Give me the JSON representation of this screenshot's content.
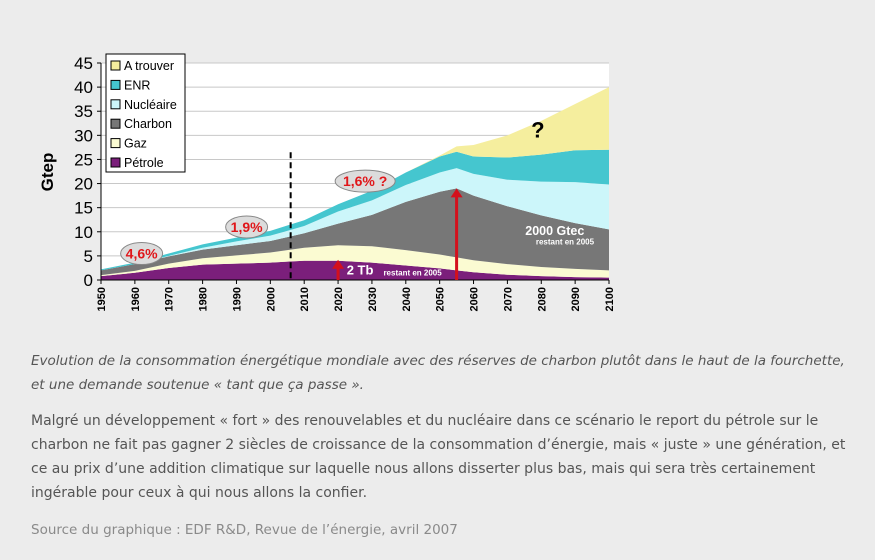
{
  "chart_data": {
    "type": "area",
    "stacked": true,
    "ylabel": "Gtep",
    "ylim": [
      0,
      45
    ],
    "yticks": [
      0,
      5,
      10,
      15,
      20,
      25,
      30,
      35,
      40,
      45
    ],
    "xlim": [
      1950,
      2100
    ],
    "xticks": [
      1950,
      1960,
      1970,
      1980,
      1990,
      2000,
      2010,
      2020,
      2030,
      2040,
      2050,
      2060,
      2070,
      2080,
      2090,
      2100
    ],
    "grid": true,
    "legend_position": "top-left",
    "x": [
      1950,
      1960,
      1970,
      1980,
      1990,
      2000,
      2005,
      2010,
      2020,
      2030,
      2040,
      2050,
      2055,
      2060,
      2070,
      2080,
      2090,
      2100
    ],
    "series": [
      {
        "name": "Pétrole",
        "color": "#7b1f7b",
        "values": [
          0.8,
          1.5,
          2.5,
          3.2,
          3.4,
          3.6,
          3.8,
          4.0,
          4.0,
          3.6,
          3.0,
          2.4,
          2.0,
          1.6,
          1.1,
          0.8,
          0.6,
          0.5
        ]
      },
      {
        "name": "Gaz",
        "color": "#fbfbd2",
        "values": [
          0.2,
          0.4,
          0.9,
          1.3,
          1.7,
          2.1,
          2.4,
          2.7,
          3.2,
          3.4,
          3.2,
          2.9,
          2.7,
          2.5,
          2.2,
          1.9,
          1.7,
          1.5
        ]
      },
      {
        "name": "Charbon",
        "color": "#777777",
        "values": [
          1.0,
          1.4,
          1.5,
          1.8,
          2.1,
          2.4,
          2.7,
          3.0,
          4.5,
          6.5,
          10.0,
          13.0,
          14.3,
          13.4,
          12.0,
          10.7,
          9.5,
          8.5
        ]
      },
      {
        "name": "Nucléaire",
        "color": "#ccf6fa",
        "values": [
          0.0,
          0.0,
          0.1,
          0.4,
          0.8,
          1.1,
          1.3,
          1.5,
          2.5,
          3.0,
          3.5,
          4.0,
          4.2,
          4.5,
          5.5,
          7.0,
          8.5,
          9.3
        ]
      },
      {
        "name": "ENR",
        "color": "#45c6cf",
        "values": [
          0.2,
          0.3,
          0.5,
          0.7,
          0.8,
          1.0,
          1.1,
          1.2,
          1.5,
          2.0,
          2.6,
          3.3,
          3.4,
          3.6,
          4.6,
          5.6,
          6.6,
          7.2
        ]
      },
      {
        "name": "A trouver",
        "color": "#f5ee9e",
        "values": [
          0,
          0,
          0,
          0,
          0,
          0,
          0,
          0,
          0,
          0,
          0,
          0.2,
          1.1,
          2.4,
          4.6,
          7.0,
          9.6,
          13.0
        ]
      }
    ],
    "growth_labels": [
      {
        "text": "4,6%",
        "x": 1962,
        "y": 5.5
      },
      {
        "text": "1,9%",
        "x": 1993,
        "y": 11.0
      },
      {
        "text": "1,6% ?",
        "x": 2028,
        "y": 20.5
      }
    ],
    "vertical_line_x": 2006,
    "annotations": {
      "question": "?",
      "coal_reserve": "2000 Gtec",
      "coal_reserve_sub": "restant en 2005",
      "oil_reserve": "2 Tb",
      "oil_reserve_sub": "restant en 2005"
    },
    "arrows_at_x": [
      2020,
      2055
    ]
  },
  "caption": "Evolution de la consommation énergétique mondiale avec des réserves de charbon plutôt dans le haut de la fourchette, et une demande soutenue « tant que ça passe ».",
  "paragraph": "Malgré un développement « fort » des renouvelables et du nucléaire dans ce scénario le report du pétrole sur le charbon ne fait pas gagner 2 siècles de croissance de la consommation d’énergie, mais « juste » une génération, et ce au prix d’une addition climatique sur laquelle nous allons disserter plus bas, mais qui sera très certainement ingérable pour ceux à qui nous allons la confier.",
  "source": "Source du graphique : EDF R&D, Revue de l’énergie, avril 2007"
}
